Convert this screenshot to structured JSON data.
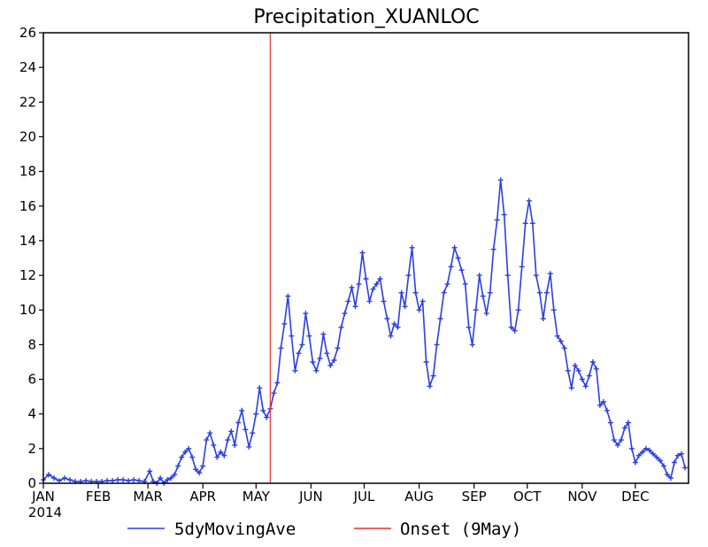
{
  "chart_data": {
    "type": "line",
    "title": "Precipitation_XUANLOC",
    "xlabel": "",
    "ylabel": "",
    "year_label": "2014",
    "x_domain_days": [
      1,
      365
    ],
    "ylim": [
      0,
      26
    ],
    "yticks": [
      0,
      2,
      4,
      6,
      8,
      10,
      12,
      14,
      16,
      18,
      20,
      22,
      24,
      26
    ],
    "month_ticks": [
      {
        "label": "JAN",
        "day": 1
      },
      {
        "label": "FEB",
        "day": 32
      },
      {
        "label": "MAR",
        "day": 60
      },
      {
        "label": "APR",
        "day": 91
      },
      {
        "label": "MAY",
        "day": 121
      },
      {
        "label": "JUN",
        "day": 152
      },
      {
        "label": "JUL",
        "day": 182
      },
      {
        "label": "AUG",
        "day": 213
      },
      {
        "label": "SEP",
        "day": 244
      },
      {
        "label": "OCT",
        "day": 274
      },
      {
        "label": "NOV",
        "day": 305
      },
      {
        "label": "DEC",
        "day": 335
      }
    ],
    "grid": false,
    "legend_position": "bottom",
    "series": [
      {
        "name": "5dyMovingAve",
        "color": "#2b3fe0",
        "marker": "plus",
        "points": [
          [
            1,
            0.2
          ],
          [
            4,
            0.5
          ],
          [
            7,
            0.3
          ],
          [
            10,
            0.15
          ],
          [
            13,
            0.3
          ],
          [
            16,
            0.2
          ],
          [
            19,
            0.1
          ],
          [
            22,
            0.1
          ],
          [
            25,
            0.15
          ],
          [
            28,
            0.1
          ],
          [
            31,
            0.1
          ],
          [
            34,
            0.1
          ],
          [
            37,
            0.15
          ],
          [
            40,
            0.15
          ],
          [
            43,
            0.2
          ],
          [
            46,
            0.2
          ],
          [
            49,
            0.15
          ],
          [
            52,
            0.2
          ],
          [
            55,
            0.15
          ],
          [
            58,
            0.1
          ],
          [
            61,
            0.7
          ],
          [
            63,
            0.1
          ],
          [
            65,
            0.0
          ],
          [
            67,
            0.3
          ],
          [
            69,
            0.0
          ],
          [
            71,
            0.2
          ],
          [
            73,
            0.3
          ],
          [
            75,
            0.5
          ],
          [
            77,
            1.0
          ],
          [
            79,
            1.5
          ],
          [
            81,
            1.8
          ],
          [
            83,
            2.0
          ],
          [
            85,
            1.5
          ],
          [
            87,
            0.8
          ],
          [
            89,
            0.6
          ],
          [
            91,
            1.0
          ],
          [
            93,
            2.5
          ],
          [
            95,
            2.9
          ],
          [
            97,
            2.2
          ],
          [
            99,
            1.5
          ],
          [
            101,
            1.8
          ],
          [
            103,
            1.6
          ],
          [
            105,
            2.5
          ],
          [
            107,
            3.0
          ],
          [
            109,
            2.2
          ],
          [
            111,
            3.5
          ],
          [
            113,
            4.2
          ],
          [
            115,
            3.1
          ],
          [
            117,
            2.1
          ],
          [
            119,
            2.9
          ],
          [
            121,
            4.0
          ],
          [
            123,
            5.5
          ],
          [
            125,
            4.2
          ],
          [
            127,
            3.8
          ],
          [
            129,
            4.3
          ],
          [
            131,
            5.2
          ],
          [
            133,
            5.8
          ],
          [
            135,
            7.8
          ],
          [
            137,
            9.2
          ],
          [
            139,
            10.8
          ],
          [
            141,
            8.5
          ],
          [
            143,
            6.5
          ],
          [
            145,
            7.5
          ],
          [
            147,
            8.0
          ],
          [
            149,
            9.8
          ],
          [
            151,
            8.5
          ],
          [
            153,
            7.0
          ],
          [
            155,
            6.5
          ],
          [
            157,
            7.2
          ],
          [
            159,
            8.6
          ],
          [
            161,
            7.5
          ],
          [
            163,
            6.8
          ],
          [
            165,
            7.1
          ],
          [
            167,
            7.8
          ],
          [
            169,
            9.0
          ],
          [
            171,
            9.8
          ],
          [
            173,
            10.5
          ],
          [
            175,
            11.3
          ],
          [
            177,
            10.2
          ],
          [
            179,
            11.5
          ],
          [
            181,
            13.3
          ],
          [
            183,
            11.8
          ],
          [
            185,
            10.5
          ],
          [
            187,
            11.2
          ],
          [
            189,
            11.5
          ],
          [
            191,
            11.8
          ],
          [
            193,
            10.5
          ],
          [
            195,
            9.5
          ],
          [
            197,
            8.5
          ],
          [
            199,
            9.2
          ],
          [
            201,
            9.0
          ],
          [
            203,
            11.0
          ],
          [
            205,
            10.2
          ],
          [
            207,
            12.0
          ],
          [
            209,
            13.6
          ],
          [
            211,
            11.0
          ],
          [
            213,
            10.0
          ],
          [
            215,
            10.5
          ],
          [
            217,
            7.0
          ],
          [
            219,
            5.6
          ],
          [
            221,
            6.2
          ],
          [
            223,
            8.0
          ],
          [
            225,
            9.5
          ],
          [
            227,
            11.0
          ],
          [
            229,
            11.5
          ],
          [
            231,
            12.5
          ],
          [
            233,
            13.6
          ],
          [
            235,
            13.0
          ],
          [
            237,
            12.3
          ],
          [
            239,
            11.5
          ],
          [
            241,
            9.0
          ],
          [
            243,
            8.0
          ],
          [
            245,
            10.0
          ],
          [
            247,
            12.0
          ],
          [
            249,
            10.8
          ],
          [
            251,
            9.8
          ],
          [
            253,
            11.0
          ],
          [
            255,
            13.5
          ],
          [
            257,
            15.2
          ],
          [
            259,
            17.5
          ],
          [
            261,
            15.5
          ],
          [
            263,
            12.0
          ],
          [
            265,
            9.0
          ],
          [
            267,
            8.8
          ],
          [
            269,
            10.0
          ],
          [
            271,
            12.5
          ],
          [
            273,
            15.0
          ],
          [
            275,
            16.3
          ],
          [
            277,
            15.0
          ],
          [
            279,
            12.0
          ],
          [
            281,
            11.0
          ],
          [
            283,
            9.5
          ],
          [
            285,
            11.0
          ],
          [
            287,
            12.1
          ],
          [
            289,
            10.0
          ],
          [
            291,
            8.5
          ],
          [
            293,
            8.2
          ],
          [
            295,
            7.8
          ],
          [
            297,
            6.5
          ],
          [
            299,
            5.5
          ],
          [
            301,
            6.8
          ],
          [
            303,
            6.5
          ],
          [
            305,
            6.0
          ],
          [
            307,
            5.6
          ],
          [
            309,
            6.2
          ],
          [
            311,
            7.0
          ],
          [
            313,
            6.6
          ],
          [
            315,
            4.5
          ],
          [
            317,
            4.7
          ],
          [
            319,
            4.2
          ],
          [
            321,
            3.5
          ],
          [
            323,
            2.5
          ],
          [
            325,
            2.2
          ],
          [
            327,
            2.5
          ],
          [
            329,
            3.2
          ],
          [
            331,
            3.5
          ],
          [
            333,
            2.0
          ],
          [
            335,
            1.2
          ],
          [
            337,
            1.6
          ],
          [
            339,
            1.8
          ],
          [
            341,
            2.0
          ],
          [
            343,
            1.9
          ],
          [
            345,
            1.7
          ],
          [
            347,
            1.5
          ],
          [
            349,
            1.3
          ],
          [
            351,
            1.0
          ],
          [
            353,
            0.5
          ],
          [
            355,
            0.3
          ],
          [
            357,
            1.2
          ],
          [
            359,
            1.6
          ],
          [
            361,
            1.7
          ],
          [
            363,
            0.9
          ]
        ]
      },
      {
        "name": "Onset (9May)",
        "color": "#e8322c",
        "type": "vline",
        "day": 129
      }
    ]
  }
}
